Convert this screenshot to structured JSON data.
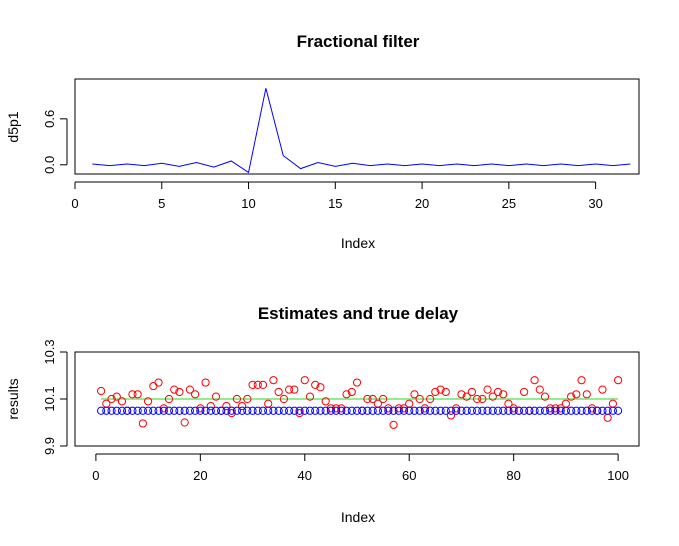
{
  "chart_data": [
    {
      "type": "line",
      "title": "Fractional filter",
      "xlabel": "Index",
      "ylabel": "d5p1",
      "xlim": [
        0,
        32.5
      ],
      "ylim": [
        -0.12,
        1.12
      ],
      "xticks": [
        "0",
        "5",
        "10",
        "15",
        "20",
        "25",
        "30"
      ],
      "yticks": [
        "0.0",
        "0.6"
      ],
      "line_color": "#0000ff",
      "x": [
        1,
        2,
        3,
        4,
        5,
        6,
        7,
        8,
        9,
        10,
        11,
        12,
        13,
        14,
        15,
        16,
        17,
        18,
        19,
        20,
        21,
        22,
        23,
        24,
        25,
        26,
        27,
        28,
        29,
        30,
        31,
        32
      ],
      "values": [
        0.01,
        -0.01,
        0.01,
        -0.01,
        0.02,
        -0.02,
        0.03,
        -0.03,
        0.05,
        -0.1,
        1.0,
        0.12,
        -0.05,
        0.03,
        -0.02,
        0.02,
        -0.01,
        0.01,
        -0.01,
        0.01,
        -0.01,
        0.01,
        -0.01,
        0.01,
        -0.01,
        0.01,
        -0.01,
        0.01,
        -0.01,
        0.01,
        -0.01,
        0.01
      ]
    },
    {
      "type": "scatter",
      "title": "Estimates and true delay",
      "xlabel": "Index",
      "ylabel": "results",
      "xlim": [
        -4,
        104
      ],
      "ylim": [
        9.9,
        10.3
      ],
      "xticks": [
        "0",
        "20",
        "40",
        "60",
        "80",
        "100"
      ],
      "yticks": [
        "9.9",
        "10.1",
        "10.3"
      ],
      "true_delay": 10.1,
      "true_delay_color": "#90ee90",
      "series": [
        {
          "color": "#ff0000",
          "x": [
            1,
            2,
            3,
            4,
            5,
            6,
            7,
            8,
            9,
            10,
            11,
            12,
            13,
            14,
            15,
            16,
            17,
            18,
            19,
            20,
            21,
            22,
            23,
            24,
            25,
            26,
            27,
            28,
            29,
            30,
            31,
            32,
            33,
            34,
            35,
            36,
            37,
            38,
            39,
            40,
            41,
            42,
            43,
            44,
            45,
            46,
            47,
            48,
            49,
            50,
            51,
            52,
            53,
            54,
            55,
            56,
            57,
            58,
            59,
            60,
            61,
            62,
            63,
            64,
            65,
            66,
            67,
            68,
            69,
            70,
            71,
            72,
            73,
            74,
            75,
            76,
            77,
            78,
            79,
            80,
            81,
            82,
            83,
            84,
            85,
            86,
            87,
            88,
            89,
            90,
            91,
            92,
            93,
            94,
            95,
            96,
            97,
            98,
            99,
            100
          ],
          "values": [
            10.134,
            10.08,
            10.1,
            10.11,
            10.09,
            10.05,
            10.12,
            10.12,
            9.996,
            10.09,
            10.155,
            10.17,
            10.06,
            10.1,
            10.14,
            10.13,
            10.0,
            10.14,
            10.12,
            10.06,
            10.17,
            10.07,
            10.11,
            10.05,
            10.07,
            10.04,
            10.1,
            10.07,
            10.1,
            10.16,
            10.16,
            10.16,
            10.08,
            10.18,
            10.13,
            10.1,
            10.14,
            10.14,
            10.04,
            10.18,
            10.11,
            10.16,
            10.15,
            10.09,
            10.06,
            10.06,
            10.06,
            10.12,
            10.13,
            10.17,
            10.05,
            10.1,
            10.1,
            10.08,
            10.1,
            10.06,
            9.99,
            10.06,
            10.06,
            10.08,
            10.12,
            10.1,
            10.06,
            10.1,
            10.13,
            10.14,
            10.13,
            10.03,
            10.06,
            10.12,
            10.11,
            10.13,
            10.1,
            10.1,
            10.14,
            10.11,
            10.13,
            10.12,
            10.08,
            10.06,
            10.05,
            10.13,
            10.05,
            10.18,
            10.14,
            10.11,
            10.06,
            10.06,
            10.06,
            10.08,
            10.11,
            10.12,
            10.18,
            10.12,
            10.06,
            10.05,
            10.14,
            10.02,
            10.08,
            10.18
          ]
        },
        {
          "color": "#0000ff",
          "x": [
            1,
            2,
            3,
            4,
            5,
            6,
            7,
            8,
            9,
            10,
            11,
            12,
            13,
            14,
            15,
            16,
            17,
            18,
            19,
            20,
            21,
            22,
            23,
            24,
            25,
            26,
            27,
            28,
            29,
            30,
            31,
            32,
            33,
            34,
            35,
            36,
            37,
            38,
            39,
            40,
            41,
            42,
            43,
            44,
            45,
            46,
            47,
            48,
            49,
            50,
            51,
            52,
            53,
            54,
            55,
            56,
            57,
            58,
            59,
            60,
            61,
            62,
            63,
            64,
            65,
            66,
            67,
            68,
            69,
            70,
            71,
            72,
            73,
            74,
            75,
            76,
            77,
            78,
            79,
            80,
            81,
            82,
            83,
            84,
            85,
            86,
            87,
            88,
            89,
            90,
            91,
            92,
            93,
            94,
            95,
            96,
            97,
            98,
            99,
            100
          ],
          "values": [
            10.05,
            10.05,
            10.05,
            10.05,
            10.05,
            10.05,
            10.05,
            10.05,
            10.05,
            10.05,
            10.05,
            10.05,
            10.05,
            10.05,
            10.05,
            10.05,
            10.05,
            10.05,
            10.05,
            10.05,
            10.05,
            10.05,
            10.05,
            10.05,
            10.05,
            10.05,
            10.05,
            10.05,
            10.05,
            10.05,
            10.05,
            10.05,
            10.05,
            10.05,
            10.05,
            10.05,
            10.05,
            10.05,
            10.05,
            10.05,
            10.05,
            10.05,
            10.05,
            10.05,
            10.05,
            10.05,
            10.05,
            10.05,
            10.05,
            10.05,
            10.05,
            10.05,
            10.05,
            10.05,
            10.05,
            10.05,
            10.05,
            10.05,
            10.05,
            10.05,
            10.05,
            10.05,
            10.05,
            10.05,
            10.05,
            10.05,
            10.05,
            10.05,
            10.05,
            10.05,
            10.05,
            10.05,
            10.05,
            10.05,
            10.05,
            10.05,
            10.05,
            10.05,
            10.05,
            10.05,
            10.05,
            10.05,
            10.05,
            10.05,
            10.05,
            10.05,
            10.05,
            10.05,
            10.05,
            10.05,
            10.05,
            10.05,
            10.05,
            10.05,
            10.05,
            10.05,
            10.05,
            10.05,
            10.05,
            10.05
          ]
        }
      ]
    }
  ]
}
